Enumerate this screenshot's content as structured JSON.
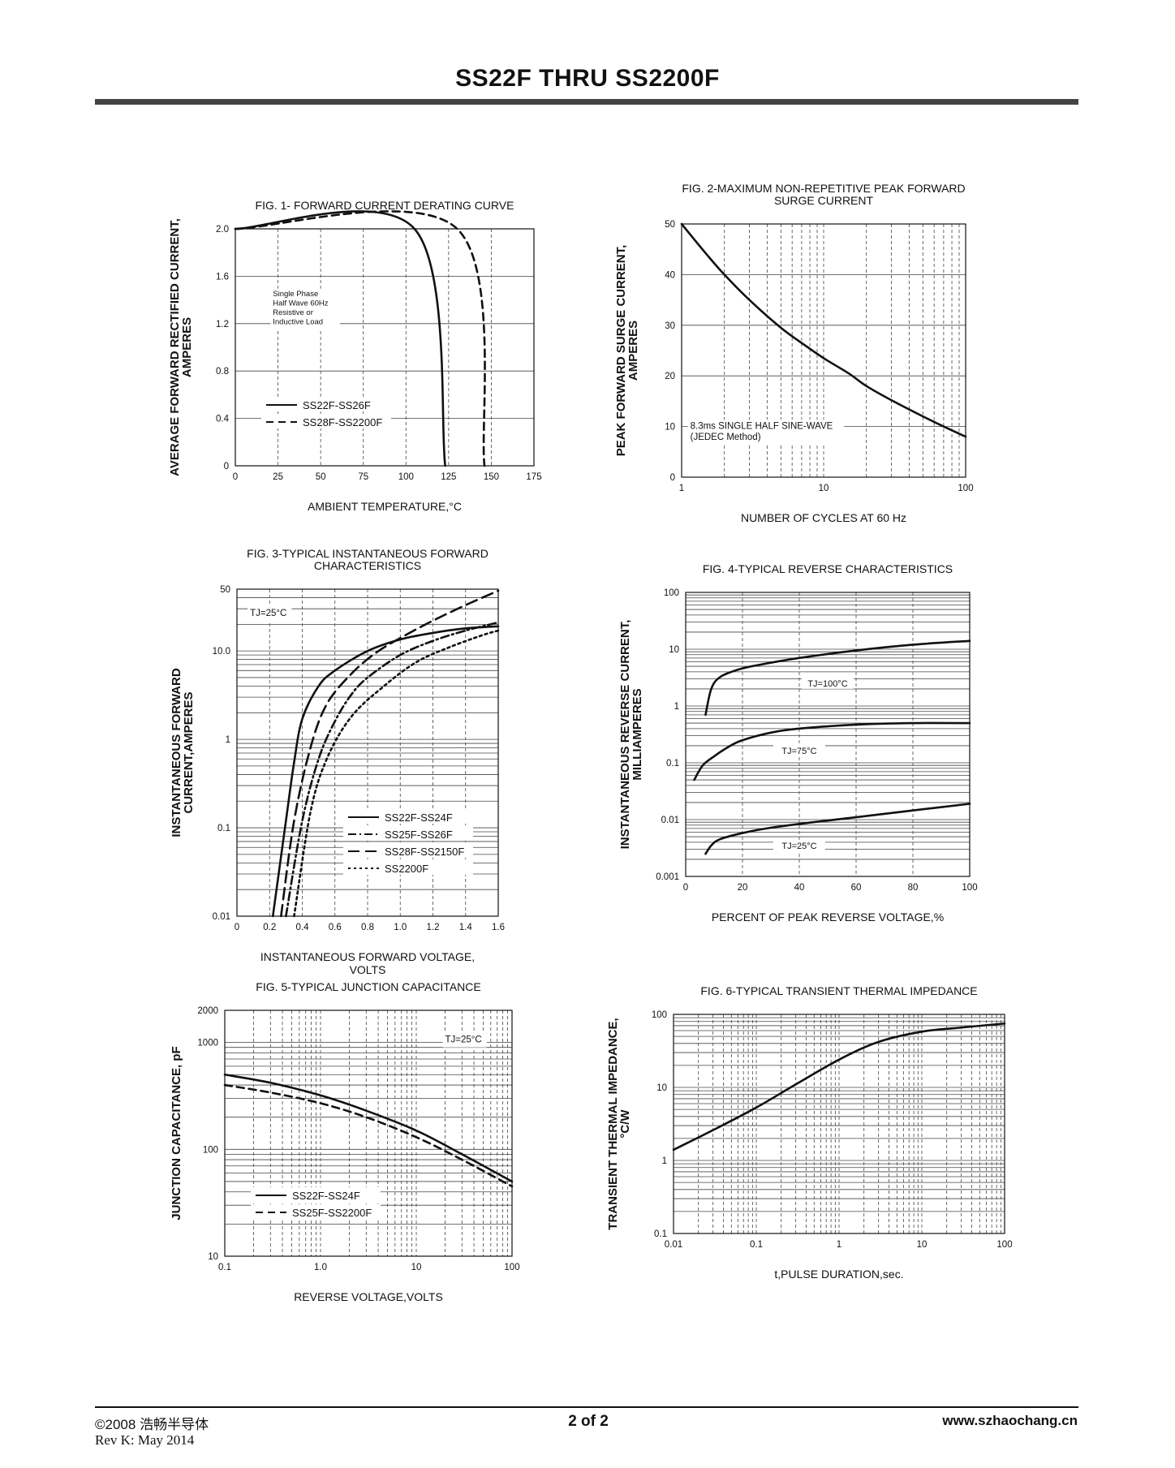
{
  "header": {
    "title": "SS22F THRU SS2200F"
  },
  "footer": {
    "copyright": "©2008 浩畅半导体",
    "revision": "Rev K:   May 2014",
    "page": "2 of  2",
    "website": "www.szhaochang.cn"
  },
  "chart_data": [
    {
      "id": "fig1",
      "type": "line",
      "title": "FIG. 1- FORWARD CURRENT DERATING CURVE",
      "xlabel": "AMBIENT TEMPERATURE,°C",
      "ylabel": [
        "AVERAGE FORWARD RECTIFIED CURRENT,",
        "AMPERES"
      ],
      "xscale": "linear",
      "yscale": "linear",
      "xlim": [
        0,
        175
      ],
      "ylim": [
        0,
        2.0
      ],
      "xticks": [
        0,
        25,
        50,
        75,
        100,
        125,
        150,
        175
      ],
      "xticklabels": [
        "0",
        "25",
        "50",
        "75",
        "100",
        "125",
        "150",
        "175"
      ],
      "yticks": [
        0,
        0.4,
        0.8,
        1.2,
        1.6,
        2.0
      ],
      "yticklabels": [
        "0",
        "0.4",
        "0.8",
        "1.2",
        "1.6",
        "2.0"
      ],
      "grid": true,
      "annotations": [
        {
          "lines": [
            "Single Phase",
            "Half Wave 60Hz",
            "Resistive or",
            "Inductive Load"
          ],
          "at": [
            22,
            1.43
          ]
        }
      ],
      "legend_position": "bottom-left",
      "series": [
        {
          "name": "SS22F-SS26F",
          "style": "solid",
          "x": [
            0,
            105,
            123
          ],
          "y": [
            2.0,
            2.0,
            0
          ]
        },
        {
          "name": "SS28F-SS2200F",
          "style": "dashed",
          "x": [
            0,
            130,
            146
          ],
          "y": [
            2.0,
            2.0,
            0
          ]
        }
      ]
    },
    {
      "id": "fig2",
      "type": "line",
      "title": [
        "FIG. 2-MAXIMUM NON-REPETITIVE PEAK FORWARD",
        "SURGE CURRENT"
      ],
      "xlabel": "NUMBER OF CYCLES AT 60 Hz",
      "ylabel": [
        "PEAK  FORWARD SURGE CURRENT,",
        "AMPERES"
      ],
      "xscale": "log",
      "yscale": "linear",
      "xlim": [
        1,
        100
      ],
      "ylim": [
        0,
        50
      ],
      "xticks": [
        1,
        10,
        100
      ],
      "xticklabels": [
        "1",
        "10",
        "100"
      ],
      "yticks": [
        0,
        10,
        20,
        30,
        40,
        50
      ],
      "yticklabels": [
        "0",
        "10",
        "20",
        "30",
        "40",
        "50"
      ],
      "grid": true,
      "annotations": [
        {
          "lines": [
            "8.3ms SINGLE HALF SINE-WAVE",
            "(JEDEC Method)"
          ],
          "at": [
            1.15,
            9.5
          ]
        }
      ],
      "series": [
        {
          "name": "",
          "style": "solid",
          "x": [
            1,
            1.5,
            2,
            3,
            5,
            7,
            10,
            15,
            20,
            30,
            50,
            70,
            100
          ],
          "y": [
            50,
            44,
            40,
            35,
            29.5,
            26.5,
            23.5,
            20.5,
            18,
            15.2,
            12,
            10,
            8
          ]
        }
      ]
    },
    {
      "id": "fig3",
      "type": "line",
      "title": [
        "FIG. 3-TYPICAL INSTANTANEOUS FORWARD",
        "CHARACTERISTICS"
      ],
      "xlabel": [
        "INSTANTANEOUS FORWARD VOLTAGE,",
        "VOLTS"
      ],
      "ylabel": [
        "INSTANTANEOUS FORWARD",
        "CURRENT,AMPERES"
      ],
      "xscale": "linear",
      "yscale": "log",
      "xlim": [
        0,
        1.6
      ],
      "ylim": [
        0.01,
        50
      ],
      "xticks": [
        0,
        0.2,
        0.4,
        0.6,
        0.8,
        1.0,
        1.2,
        1.4,
        1.6
      ],
      "xticklabels": [
        "0",
        "0.2",
        "0.4",
        "0.6",
        "0.8",
        "1.0",
        "1.2",
        "1.4",
        "1.6"
      ],
      "yticks": [
        0.01,
        0.1,
        1,
        10,
        50
      ],
      "yticklabels": [
        "0.01",
        "0.1",
        "1",
        "10.0",
        "50"
      ],
      "grid": true,
      "annotations": [
        {
          "lines": [
            "TJ=25°C"
          ],
          "at": [
            0.08,
            25
          ]
        }
      ],
      "legend_position": "bottom-right",
      "series": [
        {
          "name": "SS22F-SS24F",
          "style": "solid",
          "x": [
            0.22,
            0.3,
            0.35,
            0.4,
            0.5,
            0.6,
            0.8,
            1.0,
            1.2,
            1.4,
            1.6
          ],
          "y": [
            0.01,
            0.12,
            0.55,
            1.7,
            4.0,
            6.0,
            10,
            13.5,
            16,
            18,
            19
          ]
        },
        {
          "name": "SS25F-SS26F",
          "style": "dash-dot",
          "x": [
            0.3,
            0.4,
            0.5,
            0.6,
            0.7,
            0.8,
            1.0,
            1.2,
            1.4,
            1.6
          ],
          "y": [
            0.01,
            0.12,
            0.6,
            1.6,
            3.2,
            5.0,
            9.0,
            13,
            17,
            21
          ]
        },
        {
          "name": "SS28F-SS2150F",
          "style": "long-dash",
          "x": [
            0.27,
            0.35,
            0.45,
            0.55,
            0.7,
            0.85,
            1.0,
            1.2,
            1.4,
            1.6
          ],
          "y": [
            0.01,
            0.12,
            0.8,
            2.5,
            5.5,
            9.5,
            14,
            22,
            33,
            48
          ]
        },
        {
          "name": "SS2200F",
          "style": "dotted",
          "x": [
            0.35,
            0.45,
            0.55,
            0.7,
            0.9,
            1.1,
            1.3,
            1.5,
            1.6
          ],
          "y": [
            0.01,
            0.15,
            0.6,
            1.8,
            4.0,
            7.5,
            11,
            15,
            17
          ]
        }
      ]
    },
    {
      "id": "fig4",
      "type": "line",
      "title": "FIG. 4-TYPICAL REVERSE CHARACTERISTICS",
      "xlabel": "PERCENT OF PEAK REVERSE VOLTAGE,%",
      "ylabel": [
        "INSTANTANEOUS REVERSE CURRENT,",
        "MILLIAMPERES"
      ],
      "xscale": "linear",
      "yscale": "log",
      "xlim": [
        0,
        100
      ],
      "ylim": [
        0.001,
        100
      ],
      "xticks": [
        0,
        20,
        40,
        60,
        80,
        100
      ],
      "xticklabels": [
        "0",
        "20",
        "40",
        "60",
        "80",
        "100"
      ],
      "yticks": [
        0.001,
        0.01,
        0.1,
        1,
        10,
        100
      ],
      "yticklabels": [
        "0.001",
        "0.01",
        "0.1",
        "1",
        "10",
        "100"
      ],
      "grid": true,
      "series": [
        {
          "name": "TJ=100°C",
          "style": "solid",
          "x": [
            7,
            9,
            12,
            18,
            25,
            40,
            60,
            80,
            100
          ],
          "y": [
            0.7,
            2.0,
            3.2,
            4.3,
            5.2,
            7.0,
            9.5,
            12,
            14
          ]
        },
        {
          "name": "TJ=75°C",
          "style": "solid",
          "x": [
            3,
            6,
            10,
            15,
            20,
            30,
            40,
            60,
            80,
            100
          ],
          "y": [
            0.05,
            0.09,
            0.13,
            0.19,
            0.25,
            0.34,
            0.4,
            0.47,
            0.5,
            0.5
          ]
        },
        {
          "name": "TJ=25°C",
          "style": "solid",
          "x": [
            7,
            9,
            12,
            20,
            30,
            45,
            60,
            80,
            100
          ],
          "y": [
            0.0025,
            0.0035,
            0.0045,
            0.0058,
            0.0072,
            0.009,
            0.011,
            0.0145,
            0.019
          ]
        }
      ]
    },
    {
      "id": "fig5",
      "type": "line",
      "title": "FIG. 5-TYPICAL JUNCTION CAPACITANCE",
      "xlabel": "REVERSE VOLTAGE,VOLTS",
      "ylabel": "JUNCTION CAPACITANCE, pF",
      "xscale": "log",
      "yscale": "log",
      "xlim": [
        0.1,
        100
      ],
      "ylim": [
        10,
        2000
      ],
      "xticks": [
        0.1,
        1,
        10,
        100
      ],
      "xticklabels": [
        "0.1",
        "1.0",
        "10",
        "100"
      ],
      "yticks": [
        10,
        100,
        1000,
        2000
      ],
      "yticklabels": [
        "10",
        "100",
        "1000",
        "2000"
      ],
      "grid": true,
      "annotations": [
        {
          "lines": [
            "TJ=25°C"
          ],
          "at": [
            20,
            1000
          ]
        }
      ],
      "legend_position": "bottom-left",
      "series": [
        {
          "name": "SS22F-SS24F",
          "style": "solid",
          "x": [
            0.1,
            0.3,
            1,
            3,
            10,
            30,
            100
          ],
          "y": [
            500,
            420,
            320,
            230,
            150,
            90,
            50
          ]
        },
        {
          "name": "SS25F-SS2200F",
          "style": "dashed",
          "x": [
            0.1,
            0.3,
            1,
            3,
            10,
            30,
            100
          ],
          "y": [
            400,
            340,
            270,
            200,
            130,
            80,
            45
          ]
        }
      ]
    },
    {
      "id": "fig6",
      "type": "line",
      "title": "FIG. 6-TYPICAL TRANSIENT THERMAL IMPEDANCE",
      "xlabel": "t,PULSE DURATION,sec.",
      "ylabel": [
        "TRANSIENT THERMAL IMPEDANCE,",
        "°C/W"
      ],
      "xscale": "log",
      "yscale": "log",
      "xlim": [
        0.01,
        100
      ],
      "ylim": [
        0.1,
        100
      ],
      "xticks": [
        0.01,
        0.1,
        1,
        10,
        100
      ],
      "xticklabels": [
        "0.01",
        "0.1",
        "1",
        "10",
        "100"
      ],
      "yticks": [
        0.1,
        1,
        10,
        100
      ],
      "yticklabels": [
        "0.1",
        "1",
        "10",
        "100"
      ],
      "grid": true,
      "series": [
        {
          "name": "",
          "style": "solid",
          "x": [
            0.01,
            0.03,
            0.1,
            0.3,
            1,
            3,
            10,
            30,
            100
          ],
          "y": [
            1.4,
            2.6,
            5.3,
            11,
            24,
            42,
            58,
            66,
            75
          ]
        }
      ]
    }
  ]
}
